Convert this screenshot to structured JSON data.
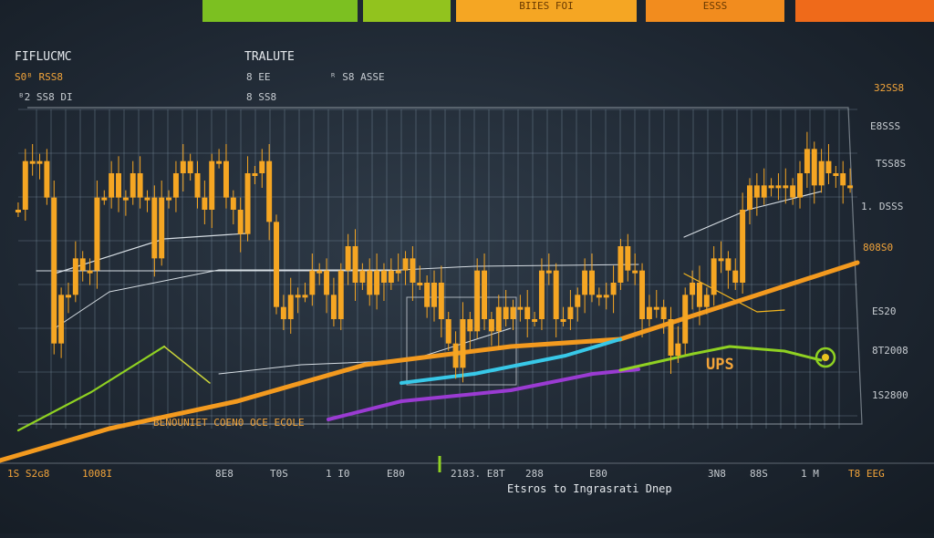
{
  "top_tabs": [
    {
      "label": "",
      "color": "#7cc021"
    },
    {
      "label": "",
      "color": "#92c31e"
    },
    {
      "label": "BIIES FOI",
      "color": "#f5a623"
    },
    {
      "label": "ESSS",
      "color": "#f28c1e"
    },
    {
      "label": "",
      "color": "#ef6a1a"
    }
  ],
  "colors": {
    "candle": "#f5a623",
    "grid": "#8da2b5",
    "orange_trend": "#f39a1f",
    "green_trend": "#8fd122",
    "cyan_trend": "#38c8e8",
    "purple_trend": "#9a3bd2",
    "yellow_trend": "#f2b51e"
  },
  "chart_data": {
    "type": "line",
    "title": "FIFLUCMC",
    "subtitle": "TRALUTE",
    "header_labels": [
      "S0ᴮ RSS8",
      "8 EE",
      "8 SS8",
      "ᴿ S8 ASSE"
    ],
    "left_labels": [
      "ᴮ2 SS8 DI"
    ],
    "y_tick_labels_right": [
      "32SS8",
      "E8SSS",
      "TSS8S",
      "1. DSSS",
      "808S0",
      "ES20",
      "8T2008",
      "1S2800"
    ],
    "x_tick_labels": [
      "1S S2ɢ8",
      "1008I",
      "8E8",
      "T0S",
      "1 I0",
      "E80",
      "2183. E8T",
      "288",
      "E80",
      "3N8",
      "88S",
      "1 M",
      "T8 EEG"
    ],
    "annotations": [
      "BENOUNIET COEN0 OCE ECOLE",
      "UPS"
    ],
    "footer_caption": "Etsros to Ingrasrati Dnep",
    "candle_close": [
      290,
      330,
      330,
      330,
      300,
      180,
      220,
      220,
      250,
      240,
      240,
      300,
      300,
      320,
      300,
      300,
      320,
      300,
      300,
      250,
      300,
      300,
      320,
      330,
      320,
      300,
      290,
      330,
      330,
      300,
      290,
      270,
      320,
      320,
      330,
      280,
      210,
      200,
      220,
      220,
      220,
      240,
      240,
      220,
      200,
      240,
      260,
      230,
      240,
      220,
      240,
      230,
      240,
      240,
      250,
      230,
      230,
      210,
      230,
      200,
      180,
      160,
      200,
      190,
      240,
      200,
      190,
      210,
      200,
      210,
      210,
      200,
      200,
      240,
      240,
      200,
      200,
      210,
      220,
      240,
      220,
      220,
      220,
      230,
      260,
      240,
      240,
      200,
      210,
      210,
      200,
      170,
      180,
      220,
      230,
      210,
      220,
      250,
      250,
      240,
      230,
      290,
      310,
      300,
      310,
      310,
      310,
      310,
      300,
      320,
      340,
      310,
      330,
      320,
      320,
      310,
      310
    ]
  }
}
